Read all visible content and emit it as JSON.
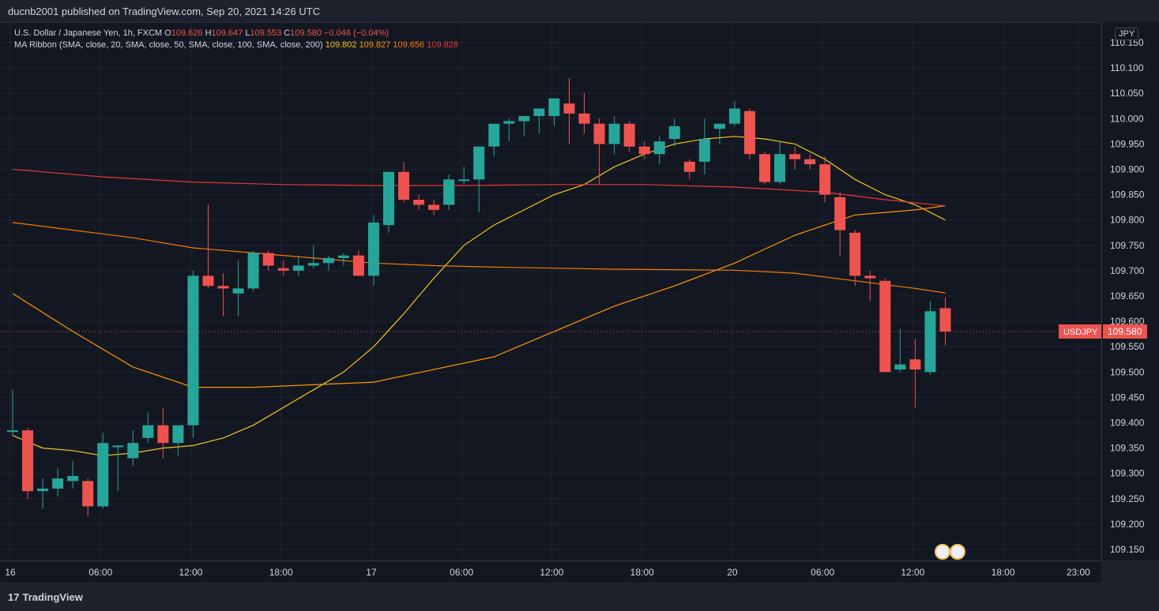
{
  "header": {
    "publisher": "ducnb2001 published on TradingView.com, Sep 20, 2021 14:26 UTC"
  },
  "legend": {
    "symbol_line": "U.S. Dollar / Japanese Yen, 1h, FXCM",
    "o_label": "O",
    "o_val": "109.626",
    "h_label": "H",
    "h_val": "109.647",
    "l_label": "L",
    "l_val": "109.553",
    "c_label": "C",
    "c_val": "109.580",
    "change": "−0.046 (−0.04%)",
    "ma_line": "MA Ribbon (SMA, close, 20, SMA, close, 50, SMA, close, 100, SMA, close, 200)",
    "ma_values": [
      {
        "value": "109.802",
        "color": "#f5c518"
      },
      {
        "value": "109.827",
        "color": "#ff9800"
      },
      {
        "value": "109.656",
        "color": "#f57c00"
      },
      {
        "value": "109.828",
        "color": "#e53935"
      }
    ]
  },
  "currency_badge": "JPY",
  "price_tag": {
    "symbol": "USDJPY",
    "value": "109.580",
    "color": "#ef5350"
  },
  "footer": {
    "brand": "TradingView",
    "brand_mark": "17"
  },
  "colors": {
    "up": "#26a69a",
    "down": "#ef5350",
    "background": "#131722",
    "grid": "#1e222d"
  },
  "chart_data": {
    "type": "candlestick",
    "y_ticks": [
      "110.150",
      "110.100",
      "110.050",
      "110.000",
      "109.950",
      "109.900",
      "109.850",
      "109.800",
      "109.750",
      "109.700",
      "109.650",
      "109.600",
      "109.550",
      "109.500",
      "109.450",
      "109.400",
      "109.350",
      "109.300",
      "109.250",
      "109.200",
      "109.150"
    ],
    "ylim": [
      109.13,
      110.15
    ],
    "x_ticks": [
      "16",
      "06:00",
      "12:00",
      "18:00",
      "17",
      "06:00",
      "12:00",
      "18:00",
      "20",
      "06:00",
      "12:00",
      "18:00",
      "23:00"
    ],
    "x_tick_index": [
      0,
      6,
      12,
      18,
      24,
      30,
      36,
      42,
      48,
      54,
      60,
      66,
      71
    ],
    "candles": [
      [
        109.385,
        109.465,
        109.375,
        109.385
      ],
      [
        109.385,
        109.39,
        109.25,
        109.265
      ],
      [
        109.265,
        109.29,
        109.23,
        109.27
      ],
      [
        109.27,
        109.31,
        109.255,
        109.29
      ],
      [
        109.285,
        109.325,
        109.27,
        109.295
      ],
      [
        109.285,
        109.29,
        109.215,
        109.235
      ],
      [
        109.235,
        109.38,
        109.23,
        109.36
      ],
      [
        109.355,
        109.355,
        109.265,
        109.355
      ],
      [
        109.33,
        109.385,
        109.315,
        109.36
      ],
      [
        109.37,
        109.42,
        109.36,
        109.395
      ],
      [
        109.395,
        109.43,
        109.33,
        109.36
      ],
      [
        109.36,
        109.395,
        109.335,
        109.395
      ],
      [
        109.395,
        109.7,
        109.37,
        109.69
      ],
      [
        109.69,
        109.83,
        109.665,
        109.67
      ],
      [
        109.67,
        109.695,
        109.61,
        109.665
      ],
      [
        109.655,
        109.72,
        109.61,
        109.665
      ],
      [
        109.665,
        109.74,
        109.66,
        109.735
      ],
      [
        109.735,
        109.74,
        109.7,
        109.71
      ],
      [
        109.705,
        109.72,
        109.69,
        109.7
      ],
      [
        109.7,
        109.73,
        109.69,
        109.71
      ],
      [
        109.71,
        109.75,
        109.705,
        109.715
      ],
      [
        109.715,
        109.73,
        109.7,
        109.725
      ],
      [
        109.725,
        109.735,
        109.71,
        109.73
      ],
      [
        109.73,
        109.74,
        109.69,
        109.69
      ],
      [
        109.69,
        109.81,
        109.67,
        109.795
      ],
      [
        109.79,
        109.895,
        109.775,
        109.895
      ],
      [
        109.895,
        109.915,
        109.835,
        109.84
      ],
      [
        109.84,
        109.85,
        109.82,
        109.83
      ],
      [
        109.83,
        109.84,
        109.81,
        109.82
      ],
      [
        109.83,
        109.89,
        109.82,
        109.88
      ],
      [
        109.88,
        109.905,
        109.87,
        109.88
      ],
      [
        109.88,
        109.945,
        109.815,
        109.945
      ],
      [
        109.945,
        109.99,
        109.925,
        109.99
      ],
      [
        109.99,
        110.0,
        109.955,
        109.995
      ],
      [
        109.995,
        110.005,
        109.965,
        110.005
      ],
      [
        110.005,
        110.02,
        109.97,
        110.02
      ],
      [
        110.005,
        110.04,
        109.985,
        110.04
      ],
      [
        110.03,
        110.08,
        109.95,
        110.01
      ],
      [
        110.01,
        110.05,
        109.97,
        109.99
      ],
      [
        109.99,
        110.0,
        109.87,
        109.95
      ],
      [
        109.95,
        110.005,
        109.93,
        109.99
      ],
      [
        109.99,
        109.995,
        109.935,
        109.945
      ],
      [
        109.945,
        109.955,
        109.92,
        109.93
      ],
      [
        109.93,
        109.965,
        109.91,
        109.955
      ],
      [
        109.96,
        110.0,
        109.945,
        109.985
      ],
      [
        109.915,
        109.92,
        109.88,
        109.895
      ],
      [
        109.915,
        110.0,
        109.89,
        109.96
      ],
      [
        109.98,
        109.99,
        109.95,
        109.99
      ],
      [
        109.99,
        110.035,
        109.985,
        110.02
      ],
      [
        110.015,
        110.02,
        109.92,
        109.93
      ],
      [
        109.93,
        109.935,
        109.87,
        109.875
      ],
      [
        109.875,
        109.955,
        109.87,
        109.93
      ],
      [
        109.93,
        109.945,
        109.9,
        109.92
      ],
      [
        109.92,
        109.93,
        109.9,
        109.91
      ],
      [
        109.91,
        109.925,
        109.835,
        109.85
      ],
      [
        109.845,
        109.855,
        109.73,
        109.78
      ],
      [
        109.775,
        109.78,
        109.67,
        109.69
      ],
      [
        109.69,
        109.7,
        109.64,
        109.685
      ],
      [
        109.68,
        109.685,
        109.5,
        109.5
      ],
      [
        109.505,
        109.585,
        109.5,
        109.515
      ],
      [
        109.525,
        109.565,
        109.43,
        109.505
      ],
      [
        109.5,
        109.64,
        109.495,
        109.62
      ],
      [
        109.626,
        109.647,
        109.553,
        109.58
      ]
    ],
    "series": [
      {
        "name": "SMA 20",
        "color": "#f5c518",
        "x": [
          0,
          2,
          4,
          6,
          8,
          10,
          12,
          14,
          16,
          18,
          20,
          22,
          24,
          26,
          28,
          30,
          32,
          34,
          36,
          38,
          40,
          42,
          44,
          46,
          48,
          50,
          52,
          54,
          56,
          58,
          60,
          62
        ],
        "values": [
          109.375,
          109.35,
          109.345,
          109.335,
          109.34,
          109.35,
          109.355,
          109.37,
          109.395,
          109.43,
          109.465,
          109.5,
          109.55,
          109.615,
          109.685,
          109.75,
          109.79,
          109.82,
          109.85,
          109.87,
          109.905,
          109.93,
          109.95,
          109.96,
          109.965,
          109.96,
          109.95,
          109.92,
          109.88,
          109.85,
          109.83,
          109.8
        ]
      },
      {
        "name": "SMA 50",
        "color": "#ff9800",
        "x": [
          0,
          4,
          8,
          12,
          16,
          20,
          24,
          28,
          32,
          36,
          40,
          44,
          48,
          52,
          56,
          58,
          60,
          62
        ],
        "values": [
          109.655,
          109.58,
          109.51,
          109.47,
          109.47,
          109.475,
          109.48,
          109.505,
          109.53,
          109.58,
          109.63,
          109.67,
          109.715,
          109.77,
          109.81,
          109.815,
          109.82,
          109.828
        ]
      },
      {
        "name": "SMA 100",
        "color": "#f57c00",
        "x": [
          0,
          4,
          8,
          12,
          16,
          20,
          24,
          28,
          32,
          36,
          40,
          44,
          48,
          52,
          56,
          60,
          62
        ],
        "values": [
          109.795,
          109.78,
          109.765,
          109.745,
          109.735,
          109.725,
          109.715,
          109.71,
          109.707,
          109.705,
          109.703,
          109.702,
          109.701,
          109.695,
          109.68,
          109.665,
          109.656
        ]
      },
      {
        "name": "SMA 200",
        "color": "#e53935",
        "x": [
          0,
          6,
          12,
          18,
          24,
          30,
          36,
          42,
          48,
          54,
          58,
          62
        ],
        "values": [
          109.9,
          109.885,
          109.875,
          109.87,
          109.868,
          109.868,
          109.87,
          109.87,
          109.865,
          109.855,
          109.84,
          109.828
        ]
      }
    ],
    "current_price": 109.58
  }
}
